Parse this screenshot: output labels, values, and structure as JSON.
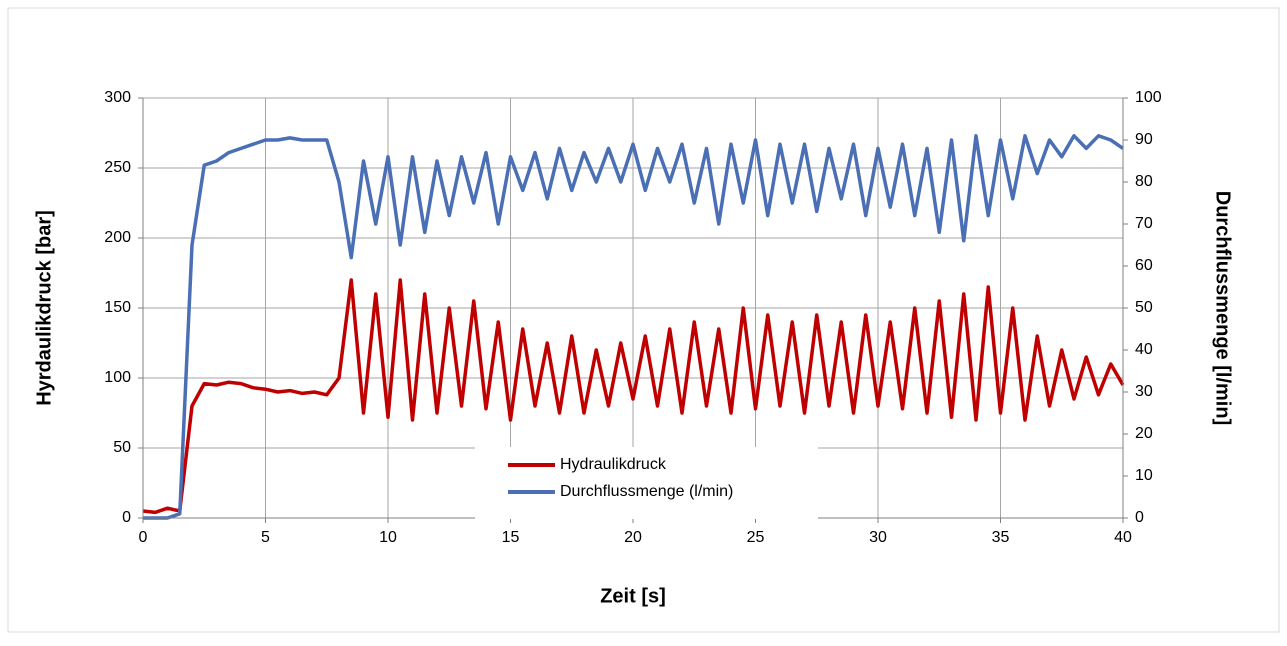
{
  "chart_data": {
    "type": "line",
    "xlabel": "Zeit [s]",
    "ylabel": "Hyrdaulikdruck [bar]",
    "y2label": "Durchflussmenge [l/min]",
    "x": [
      0,
      0.5,
      1,
      1.5,
      2,
      2.5,
      3,
      3.5,
      4,
      4.5,
      5,
      5.5,
      6,
      6.5,
      7,
      7.5,
      8,
      8.5,
      9,
      9.5,
      10,
      10.5,
      11,
      11.5,
      12,
      12.5,
      13,
      13.5,
      14,
      14.5,
      15,
      15.5,
      16,
      16.5,
      17,
      17.5,
      18,
      18.5,
      19,
      19.5,
      20,
      20.5,
      21,
      21.5,
      22,
      22.5,
      23,
      23.5,
      24,
      24.5,
      25,
      25.5,
      26,
      26.5,
      27,
      27.5,
      28,
      28.5,
      29,
      29.5,
      30,
      30.5,
      31,
      31.5,
      32,
      32.5,
      33,
      33.5,
      34,
      34.5,
      35,
      35.5,
      36,
      36.5,
      37,
      37.5,
      38,
      38.5,
      39,
      39.5,
      40
    ],
    "series": [
      {
        "name": "Hydraulikdruck",
        "color": "#c00000",
        "values": [
          5,
          4,
          7,
          5,
          80,
          96,
          95,
          97,
          96,
          93,
          92,
          90,
          91,
          89,
          90,
          88,
          100,
          170,
          75,
          160,
          72,
          170,
          70,
          160,
          75,
          150,
          80,
          155,
          78,
          140,
          70,
          135,
          80,
          125,
          75,
          130,
          75,
          120,
          80,
          125,
          85,
          130,
          80,
          135,
          75,
          140,
          80,
          135,
          75,
          150,
          78,
          145,
          80,
          140,
          75,
          145,
          80,
          140,
          75,
          145,
          80,
          140,
          78,
          150,
          75,
          155,
          72,
          160,
          70,
          165,
          75,
          150,
          70,
          130,
          80,
          120,
          85,
          115,
          88,
          110,
          95
        ]
      },
      {
        "name": "Durchflussmenge (l/min)",
        "color": "#4a6fb5",
        "axis": "y2",
        "values": [
          0,
          0,
          0,
          1,
          65,
          84,
          85,
          87,
          88,
          89,
          90,
          90,
          90.5,
          90,
          90,
          90,
          80,
          62,
          85,
          70,
          86,
          65,
          86,
          68,
          85,
          72,
          86,
          75,
          87,
          70,
          86,
          78,
          87,
          76,
          88,
          78,
          87,
          80,
          88,
          80,
          89,
          78,
          88,
          80,
          89,
          75,
          88,
          70,
          89,
          75,
          90,
          72,
          89,
          75,
          89,
          73,
          88,
          76,
          89,
          72,
          88,
          74,
          89,
          72,
          88,
          68,
          90,
          66,
          91,
          72,
          90,
          76,
          91,
          82,
          90,
          86,
          91,
          88,
          91,
          90,
          88
        ]
      }
    ],
    "xlim": [
      0,
      40
    ],
    "xticks": [
      0,
      5,
      10,
      15,
      20,
      25,
      30,
      35,
      40
    ],
    "ylim": [
      0,
      300
    ],
    "yticks": [
      0,
      50,
      100,
      150,
      200,
      250,
      300
    ],
    "y2lim": [
      0,
      100
    ],
    "y2ticks": [
      0,
      10,
      20,
      30,
      40,
      50,
      60,
      70,
      80,
      90,
      100
    ],
    "grid": true,
    "legend": "bottom-center"
  }
}
